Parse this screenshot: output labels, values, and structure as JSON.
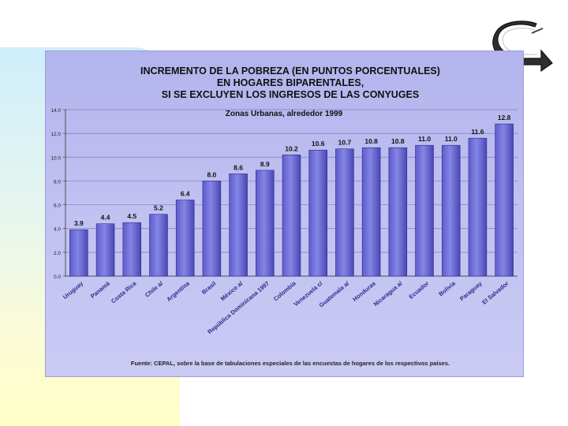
{
  "chart_data": {
    "type": "bar",
    "title_lines": [
      "INCREMENTO  DE LA POBREZA (EN PUNTOS PORCENTUALES)",
      "EN HOGARES BIPARENTALES,",
      "SI SE EXCLUYEN LOS INGRESOS DE LAS CONYUGES"
    ],
    "subtitle": "Zonas Urbanas, alrededor 1999",
    "source": "Fuente:  CEPAL, sobre la base de tabulaciones especiales de las encuestas de hogares de los respectivos países.",
    "categories": [
      "Uruguay",
      "Panamá",
      "Costa Rica",
      "Chile a/",
      "Argentina",
      "Brasil",
      "México a/",
      "República Dominicana 1997",
      "Colombia",
      "Venezuela c/",
      "Guatemala a/",
      "Honduras",
      "Nicaragua a/",
      "Ecuador",
      "Bolivia",
      "Paraguay",
      "El Salvador"
    ],
    "values": [
      3.9,
      4.4,
      4.5,
      5.2,
      6.4,
      8.0,
      8.6,
      8.9,
      10.2,
      10.6,
      10.7,
      10.8,
      10.8,
      11.0,
      11.0,
      11.6,
      12.8
    ],
    "value_labels": [
      "3.9",
      "4.4",
      "4.5",
      "5.2",
      "6.4",
      "8.0",
      "8.6",
      "8.9",
      "10.2",
      "10.6",
      "10.7",
      "10.8",
      "10.8",
      "11.0",
      "11.0",
      "11.6",
      "12.8"
    ],
    "ylim": [
      0,
      14
    ],
    "yticks": [
      0,
      2,
      4,
      6,
      8,
      10,
      12,
      14
    ],
    "ytick_labels": [
      "0.0",
      "2.0",
      "4.0",
      "6.0",
      "8.0",
      "10.0",
      "12.0",
      "14.0"
    ],
    "grid": true,
    "bar_color": "#8585e6"
  },
  "icons": {
    "nav": "curved-return-arrow-icon"
  }
}
